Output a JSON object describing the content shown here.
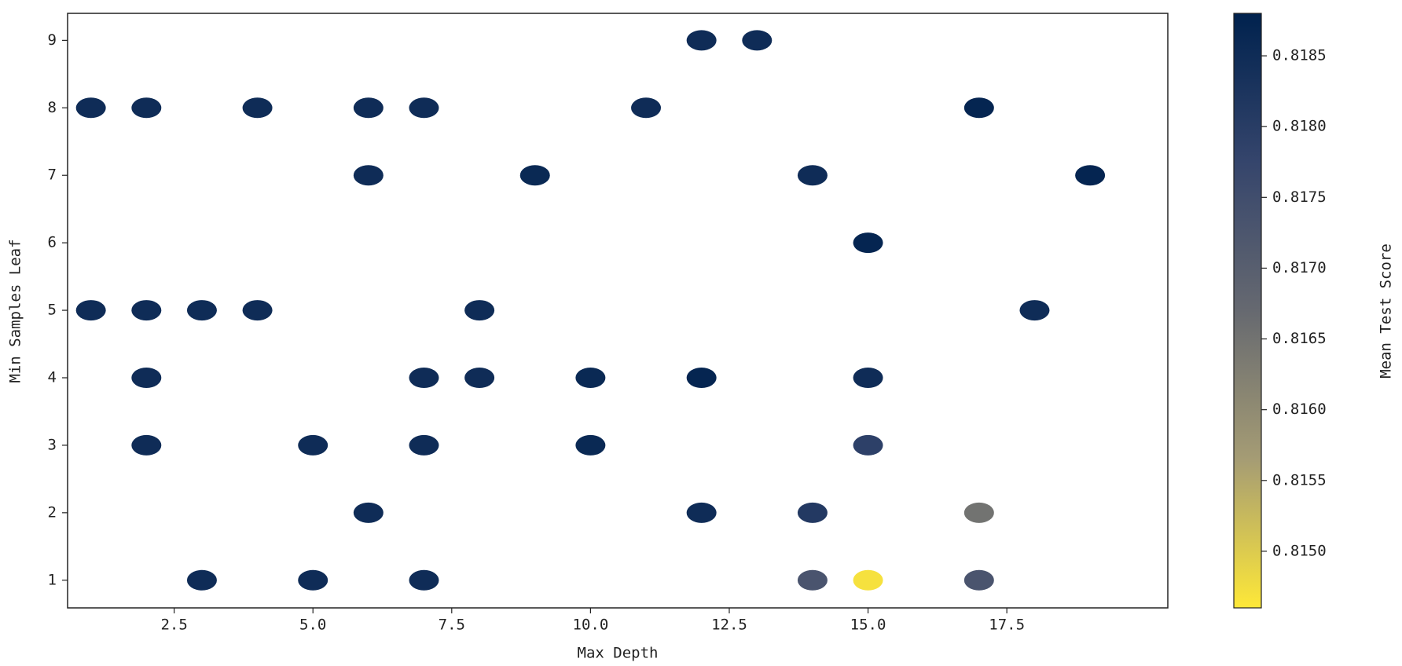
{
  "chart_data": {
    "type": "scatter",
    "x_label": "Max Depth",
    "y_label": "Min Samples Leaf",
    "colorbar_label": "Mean Test Score",
    "x": [
      12,
      13,
      1,
      2,
      4,
      6,
      7,
      11,
      17,
      6,
      9,
      14,
      19,
      15,
      1,
      2,
      3,
      4,
      8,
      18,
      2,
      7,
      8,
      10,
      12,
      15,
      2,
      5,
      7,
      10,
      15,
      6,
      12,
      14,
      17,
      3,
      5,
      7,
      14,
      15,
      17
    ],
    "y": [
      9,
      9,
      8,
      8,
      8,
      8,
      8,
      8,
      8,
      7,
      7,
      7,
      7,
      6,
      5,
      5,
      5,
      5,
      5,
      5,
      4,
      4,
      4,
      4,
      4,
      4,
      3,
      3,
      3,
      3,
      3,
      2,
      2,
      2,
      2,
      1,
      1,
      1,
      1,
      1,
      1
    ],
    "c": [
      0.8185,
      0.8185,
      0.8185,
      0.8185,
      0.8185,
      0.8185,
      0.8185,
      0.8185,
      0.8187,
      0.8185,
      0.8186,
      0.8185,
      0.8187,
      0.8187,
      0.8185,
      0.8185,
      0.8185,
      0.8185,
      0.8185,
      0.8185,
      0.8185,
      0.8185,
      0.8185,
      0.8186,
      0.8187,
      0.8185,
      0.8185,
      0.8185,
      0.8185,
      0.8186,
      0.8179,
      0.8185,
      0.8185,
      0.8181,
      0.8165,
      0.8185,
      0.8185,
      0.8185,
      0.8173,
      0.8147,
      0.8173
    ],
    "colormap": "cividis_r",
    "xlim": [
      0.58,
      20.4
    ],
    "xticks": [
      2.5,
      5.0,
      7.5,
      10.0,
      12.5,
      15.0,
      17.5
    ],
    "ylim": [
      0.59,
      9.4
    ],
    "yticks": [
      1,
      2,
      3,
      4,
      5,
      6,
      7,
      8,
      9
    ],
    "clim": [
      0.8146,
      0.8188
    ],
    "cticks": [
      0.815,
      0.8155,
      0.816,
      0.8165,
      0.817,
      0.8175,
      0.818,
      0.8185
    ]
  }
}
